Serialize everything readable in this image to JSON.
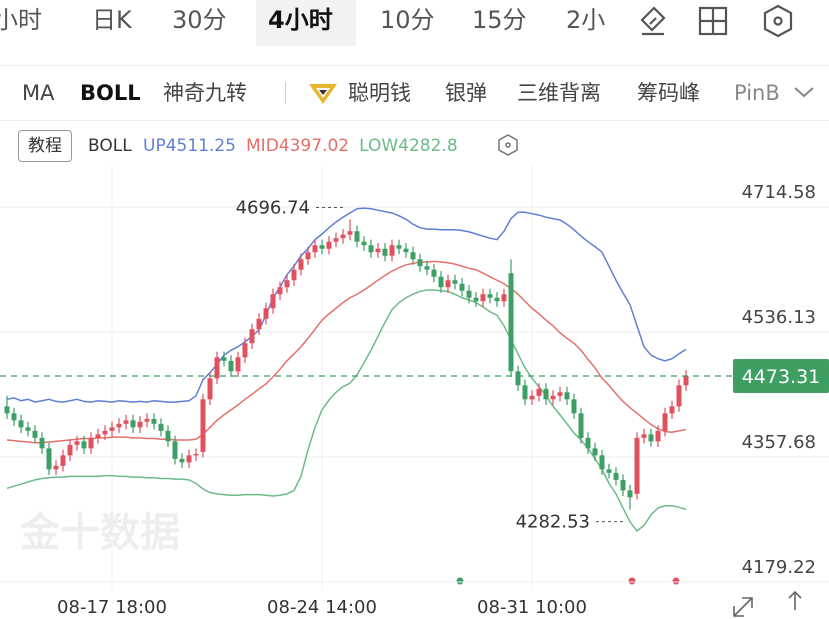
{
  "tabs": [
    "小时",
    "日K",
    "30分",
    "4小时",
    "10分",
    "15分",
    "2小"
  ],
  "indicators": [
    "MA",
    "BOLL",
    "神奇九转",
    "聪明钱",
    "银弹",
    "三维背离",
    "筹码峰",
    "PinB"
  ],
  "tutorial": "教程",
  "watermark": "金十数据",
  "chart_data": {
    "type": "candlestick",
    "indicator": "BOLL",
    "up_color": "#e0505f",
    "down_color": "#3d9f66",
    "categories": [
      null,
      null,
      null,
      null,
      null,
      null,
      null,
      null,
      null,
      null,
      null,
      null,
      null,
      null,
      null,
      "08-17 18:00",
      null,
      null,
      null,
      null,
      null,
      null,
      null,
      null,
      null,
      null,
      null,
      null,
      null,
      null,
      null,
      null,
      null,
      null,
      null,
      null,
      null,
      null,
      null,
      null,
      null,
      null,
      null,
      null,
      null,
      "08-24 14:00",
      null,
      null,
      null,
      null,
      null,
      null,
      null,
      null,
      null,
      null,
      null,
      null,
      null,
      null,
      null,
      null,
      null,
      null,
      null,
      null,
      null,
      null,
      null,
      null,
      null,
      null,
      null,
      null,
      null,
      "08-31 10:00",
      null,
      null,
      null,
      null,
      null,
      null,
      null,
      null,
      null,
      null,
      null,
      null,
      null,
      null,
      null,
      null,
      null,
      null,
      null,
      null,
      null,
      null
    ],
    "open": [
      4430,
      4420,
      4410,
      4400,
      4395,
      4385,
      4370,
      4340,
      4345,
      4360,
      4375,
      4380,
      4370,
      4385,
      4390,
      4395,
      4400,
      4405,
      4410,
      4400,
      4408,
      4412,
      4405,
      4395,
      4380,
      4355,
      4350,
      4360,
      4365,
      4440,
      4470,
      4500,
      4495,
      4480,
      4500,
      4520,
      4540,
      4555,
      4570,
      4590,
      4600,
      4610,
      4625,
      4640,
      4650,
      4660,
      4655,
      4665,
      4670,
      4675,
      4680,
      4665,
      4660,
      4650,
      4655,
      4645,
      4660,
      4655,
      4650,
      4640,
      4630,
      4625,
      4615,
      4600,
      4610,
      4605,
      4595,
      4585,
      4580,
      4590,
      4585,
      4580,
      4620,
      4480,
      4460,
      4440,
      4445,
      4455,
      4440,
      4445,
      4450,
      4440,
      4420,
      4385,
      4370,
      4360,
      4340,
      4335,
      4325,
      4310,
      4305,
      4385,
      4390,
      4380,
      4395,
      4420,
      4430,
      4460
    ],
    "high": [
      4445,
      4428,
      4418,
      4408,
      4403,
      4393,
      4378,
      4353,
      4368,
      4383,
      4388,
      4388,
      4393,
      4398,
      4403,
      4408,
      4413,
      4418,
      4418,
      4416,
      4420,
      4420,
      4413,
      4403,
      4388,
      4363,
      4368,
      4370,
      4448,
      4478,
      4508,
      4508,
      4503,
      4508,
      4528,
      4548,
      4563,
      4578,
      4598,
      4608,
      4618,
      4633,
      4648,
      4658,
      4668,
      4668,
      4673,
      4678,
      4683,
      4696.74,
      4688,
      4673,
      4668,
      4663,
      4663,
      4668,
      4668,
      4663,
      4658,
      4648,
      4638,
      4633,
      4623,
      4618,
      4618,
      4613,
      4603,
      4593,
      4598,
      4598,
      4593,
      4598,
      4640,
      4488,
      4468,
      4453,
      4463,
      4463,
      4453,
      4458,
      4458,
      4448,
      4428,
      4393,
      4378,
      4368,
      4348,
      4343,
      4333,
      4318,
      4393,
      4398,
      4398,
      4403,
      4428,
      4438,
      4468,
      4482
    ],
    "low": [
      4412,
      4402,
      4392,
      4387,
      4377,
      4362,
      4332,
      4332,
      4337,
      4352,
      4367,
      4362,
      4362,
      4377,
      4382,
      4387,
      4392,
      4397,
      4392,
      4392,
      4400,
      4397,
      4387,
      4372,
      4347,
      4342,
      4342,
      4352,
      4357,
      4432,
      4462,
      4487,
      4472,
      4472,
      4492,
      4512,
      4532,
      4547,
      4562,
      4582,
      4592,
      4602,
      4617,
      4632,
      4642,
      4647,
      4647,
      4657,
      4662,
      4667,
      4657,
      4652,
      4642,
      4642,
      4637,
      4637,
      4647,
      4642,
      4632,
      4622,
      4617,
      4607,
      4592,
      4592,
      4597,
      4587,
      4577,
      4572,
      4572,
      4577,
      4572,
      4572,
      4472,
      4452,
      4432,
      4432,
      4437,
      4432,
      4432,
      4437,
      4432,
      4412,
      4377,
      4362,
      4352,
      4332,
      4327,
      4317,
      4302,
      4282.53,
      4297,
      4377,
      4372,
      4372,
      4387,
      4412,
      4422,
      4452
    ],
    "close": [
      4420,
      4410,
      4400,
      4395,
      4385,
      4370,
      4340,
      4345,
      4360,
      4375,
      4380,
      4370,
      4385,
      4390,
      4395,
      4400,
      4405,
      4410,
      4400,
      4408,
      4412,
      4405,
      4395,
      4380,
      4355,
      4350,
      4360,
      4362,
      4440,
      4470,
      4500,
      4495,
      4480,
      4500,
      4520,
      4540,
      4555,
      4570,
      4590,
      4600,
      4610,
      4625,
      4640,
      4650,
      4660,
      4655,
      4665,
      4670,
      4675,
      4680,
      4665,
      4660,
      4650,
      4655,
      4645,
      4660,
      4655,
      4650,
      4640,
      4630,
      4625,
      4615,
      4600,
      4610,
      4605,
      4595,
      4585,
      4580,
      4590,
      4585,
      4580,
      4590,
      4480,
      4460,
      4440,
      4445,
      4455,
      4440,
      4445,
      4450,
      4440,
      4420,
      4385,
      4370,
      4360,
      4340,
      4335,
      4325,
      4310,
      4300,
      4385,
      4390,
      4380,
      4395,
      4420,
      4430,
      4460,
      4473.31
    ],
    "series": [
      {
        "name": "UP",
        "color": "#5f7fd6",
        "values": [
          4440,
          4442,
          4438,
          4440,
          4436,
          4438,
          4440,
          4437,
          4436,
          4438,
          4440,
          4437,
          4436,
          4438,
          4437,
          4436,
          4438,
          4437,
          4436,
          4437,
          4436,
          4438,
          4437,
          4436,
          4436,
          4437,
          4438,
          4445,
          4468,
          4478,
          4490,
          4503,
          4510,
          4515,
          4522,
          4530,
          4539,
          4560,
          4585,
          4600,
          4618,
          4630,
          4645,
          4655,
          4668,
          4676,
          4685,
          4693,
          4700,
          4706,
          4712,
          4713,
          4712,
          4710,
          4708,
          4706,
          4702,
          4697,
          4690,
          4685,
          4683,
          4683,
          4682,
          4682,
          4682,
          4681,
          4679,
          4676,
          4673,
          4670,
          4668,
          4680,
          4698,
          4707,
          4707,
          4705,
          4703,
          4700,
          4698,
          4696,
          4690,
          4682,
          4673,
          4665,
          4658,
          4650,
          4630,
          4610,
          4592,
          4575,
          4545,
          4515,
          4503,
          4498,
          4495,
          4498,
          4505,
          4511.25
        ]
      },
      {
        "name": "MID",
        "color": "#e5706b",
        "values": [
          4382,
          4381,
          4380,
          4379,
          4378,
          4378,
          4379,
          4380,
          4381,
          4382,
          4383,
          4384,
          4384,
          4385,
          4385,
          4386,
          4386,
          4386,
          4385,
          4385,
          4384,
          4384,
          4383,
          4383,
          4382,
          4382,
          4382,
          4383,
          4390,
          4400,
          4410,
          4418,
          4425,
          4432,
          4440,
          4447,
          4455,
          4462,
          4472,
          4483,
          4495,
          4505,
          4515,
          4527,
          4540,
          4553,
          4562,
          4570,
          4578,
          4585,
          4590,
          4596,
          4603,
          4610,
          4617,
          4623,
          4628,
          4632,
          4634,
          4636,
          4636,
          4637,
          4636,
          4635,
          4633,
          4630,
          4627,
          4625,
          4620,
          4615,
          4610,
          4605,
          4598,
          4590,
          4580,
          4570,
          4562,
          4553,
          4545,
          4535,
          4527,
          4520,
          4510,
          4497,
          4485,
          4470,
          4460,
          4448,
          4437,
          4428,
          4420,
          4412,
          4404,
          4398,
          4394,
          4393,
          4395,
          4397.02
        ]
      },
      {
        "name": "LOW",
        "color": "#6cbb88",
        "values": [
          4313,
          4316,
          4319,
          4322,
          4325,
          4327,
          4328,
          4329,
          4329,
          4330,
          4330,
          4330,
          4330,
          4330,
          4331,
          4331,
          4330,
          4330,
          4329,
          4329,
          4328,
          4328,
          4327,
          4327,
          4326,
          4326,
          4325,
          4320,
          4312,
          4307,
          4305,
          4304,
          4303,
          4303,
          4304,
          4304,
          4304,
          4303,
          4302,
          4303,
          4305,
          4310,
          4330,
          4368,
          4400,
          4425,
          4439,
          4450,
          4458,
          4463,
          4475,
          4492,
          4510,
          4530,
          4550,
          4568,
          4578,
          4585,
          4590,
          4594,
          4596,
          4596,
          4595,
          4594,
          4590,
          4585,
          4582,
          4578,
          4572,
          4565,
          4560,
          4545,
          4525,
          4505,
          4485,
          4470,
          4458,
          4445,
          4430,
          4418,
          4405,
          4392,
          4382,
          4370,
          4355,
          4340,
          4320,
          4305,
          4285,
          4265,
          4252,
          4260,
          4275,
          4285,
          4288,
          4288,
          4286,
          4282.8
        ]
      }
    ],
    "ylim": [
      4167.8,
      4774.5
    ],
    "yticks": [
      4714.58,
      4536.13,
      4357.68,
      4179.22
    ],
    "grid": true,
    "current_price_color": "#3f9f62"
  }
}
